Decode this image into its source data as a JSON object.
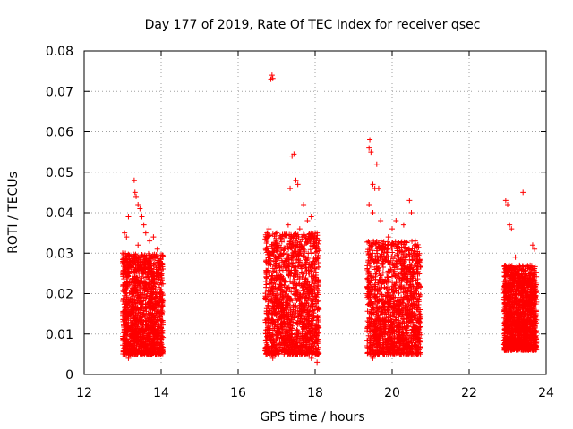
{
  "chart_data": {
    "type": "scatter",
    "title": "Day 177 of 2019, Rate Of TEC Index for receiver qsec",
    "xlabel": "GPS time / hours",
    "ylabel": "ROTI / TECUs",
    "xlim": [
      12,
      24
    ],
    "ylim": [
      0,
      0.08
    ],
    "x_ticks": [
      "12",
      "14",
      "16",
      "18",
      "20",
      "22",
      "24"
    ],
    "y_ticks": [
      "0",
      "0.01",
      "0.02",
      "0.03",
      "0.04",
      "0.05",
      "0.06",
      "0.07",
      "0.08"
    ],
    "grid": true,
    "marker": "+",
    "color": "#ff0000",
    "series": [
      {
        "name": "ROTI",
        "points": [
          [
            13.05,
            0.035
          ],
          [
            13.1,
            0.034
          ],
          [
            13.15,
            0.039
          ],
          [
            13.3,
            0.048
          ],
          [
            13.32,
            0.045
          ],
          [
            13.35,
            0.044
          ],
          [
            13.4,
            0.042
          ],
          [
            13.45,
            0.041
          ],
          [
            13.5,
            0.039
          ],
          [
            13.55,
            0.037
          ],
          [
            13.6,
            0.035
          ],
          [
            13.7,
            0.033
          ],
          [
            13.8,
            0.034
          ],
          [
            13.9,
            0.031
          ],
          [
            13.0,
            0.03
          ],
          [
            13.2,
            0.028
          ],
          [
            13.5,
            0.026
          ],
          [
            13.75,
            0.029
          ],
          [
            13.95,
            0.027
          ],
          [
            13.15,
            0.004
          ],
          [
            13.25,
            0.005
          ],
          [
            13.6,
            0.006
          ],
          [
            13.85,
            0.005
          ],
          [
            13.4,
            0.032
          ],
          [
            16.75,
            0.035
          ],
          [
            16.8,
            0.036
          ],
          [
            16.85,
            0.073
          ],
          [
            16.88,
            0.074
          ],
          [
            16.9,
            0.0732
          ],
          [
            17.0,
            0.035
          ],
          [
            17.1,
            0.034
          ],
          [
            17.3,
            0.037
          ],
          [
            17.35,
            0.046
          ],
          [
            17.4,
            0.054
          ],
          [
            17.45,
            0.0545
          ],
          [
            17.5,
            0.048
          ],
          [
            17.55,
            0.047
          ],
          [
            17.6,
            0.036
          ],
          [
            17.7,
            0.042
          ],
          [
            17.8,
            0.038
          ],
          [
            17.9,
            0.039
          ],
          [
            18.05,
            0.035
          ],
          [
            18.1,
            0.033
          ],
          [
            16.75,
            0.005
          ],
          [
            16.9,
            0.004
          ],
          [
            17.2,
            0.006
          ],
          [
            17.5,
            0.005
          ],
          [
            17.9,
            0.004
          ],
          [
            18.05,
            0.003
          ],
          [
            17.0,
            0.031
          ],
          [
            17.6,
            0.03
          ],
          [
            18.0,
            0.028
          ],
          [
            19.4,
            0.056
          ],
          [
            19.42,
            0.058
          ],
          [
            19.45,
            0.055
          ],
          [
            19.5,
            0.047
          ],
          [
            19.55,
            0.046
          ],
          [
            19.6,
            0.052
          ],
          [
            19.65,
            0.046
          ],
          [
            19.4,
            0.042
          ],
          [
            19.5,
            0.04
          ],
          [
            19.7,
            0.038
          ],
          [
            19.9,
            0.034
          ],
          [
            20.0,
            0.036
          ],
          [
            20.1,
            0.038
          ],
          [
            20.3,
            0.037
          ],
          [
            20.45,
            0.043
          ],
          [
            20.5,
            0.04
          ],
          [
            20.6,
            0.033
          ],
          [
            20.7,
            0.028
          ],
          [
            19.5,
            0.004
          ],
          [
            19.8,
            0.005
          ],
          [
            20.0,
            0.006
          ],
          [
            20.2,
            0.005
          ],
          [
            20.6,
            0.007
          ],
          [
            20.4,
            0.012
          ],
          [
            22.95,
            0.043
          ],
          [
            23.0,
            0.042
          ],
          [
            23.05,
            0.037
          ],
          [
            23.1,
            0.036
          ],
          [
            23.2,
            0.029
          ],
          [
            23.4,
            0.045
          ],
          [
            23.65,
            0.032
          ],
          [
            23.7,
            0.031
          ],
          [
            23.0,
            0.026
          ],
          [
            23.3,
            0.024
          ],
          [
            23.5,
            0.022
          ],
          [
            23.6,
            0.021
          ],
          [
            23.1,
            0.006
          ],
          [
            23.3,
            0.007
          ],
          [
            23.5,
            0.008
          ],
          [
            23.7,
            0.007
          ]
        ],
        "clusters": [
          {
            "x_range": [
              13.0,
              14.05
            ],
            "density": "dense",
            "typical_y": [
              0.005,
              0.03
            ]
          },
          {
            "x_range": [
              16.7,
              18.1
            ],
            "density": "dense",
            "typical_y": [
              0.005,
              0.035
            ]
          },
          {
            "x_range": [
              19.35,
              20.75
            ],
            "density": "dense",
            "typical_y": [
              0.005,
              0.033
            ]
          },
          {
            "x_range": [
              22.9,
              23.75
            ],
            "density": "dense",
            "typical_y": [
              0.006,
              0.027
            ]
          }
        ]
      }
    ]
  }
}
